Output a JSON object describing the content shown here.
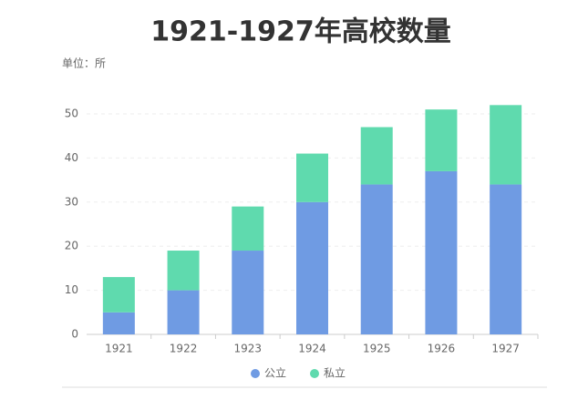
{
  "chart_data": {
    "type": "stacked_bar",
    "title": "1921-1927年高校数量",
    "subtitle": "单位：所",
    "categories": [
      "1921",
      "1922",
      "1923",
      "1924",
      "1925",
      "1926",
      "1927"
    ],
    "series": [
      {
        "name": "公立",
        "color": "#6f9be3",
        "values": [
          5,
          10,
          19,
          30,
          34,
          37,
          34
        ]
      },
      {
        "name": "私立",
        "color": "#5fdaae",
        "values": [
          8,
          9,
          10,
          11,
          13,
          14,
          18
        ]
      }
    ],
    "ylim": [
      0,
      55
    ],
    "yticks": [
      0,
      10,
      20,
      30,
      40,
      50
    ],
    "grid": true,
    "legend": "bottom"
  }
}
